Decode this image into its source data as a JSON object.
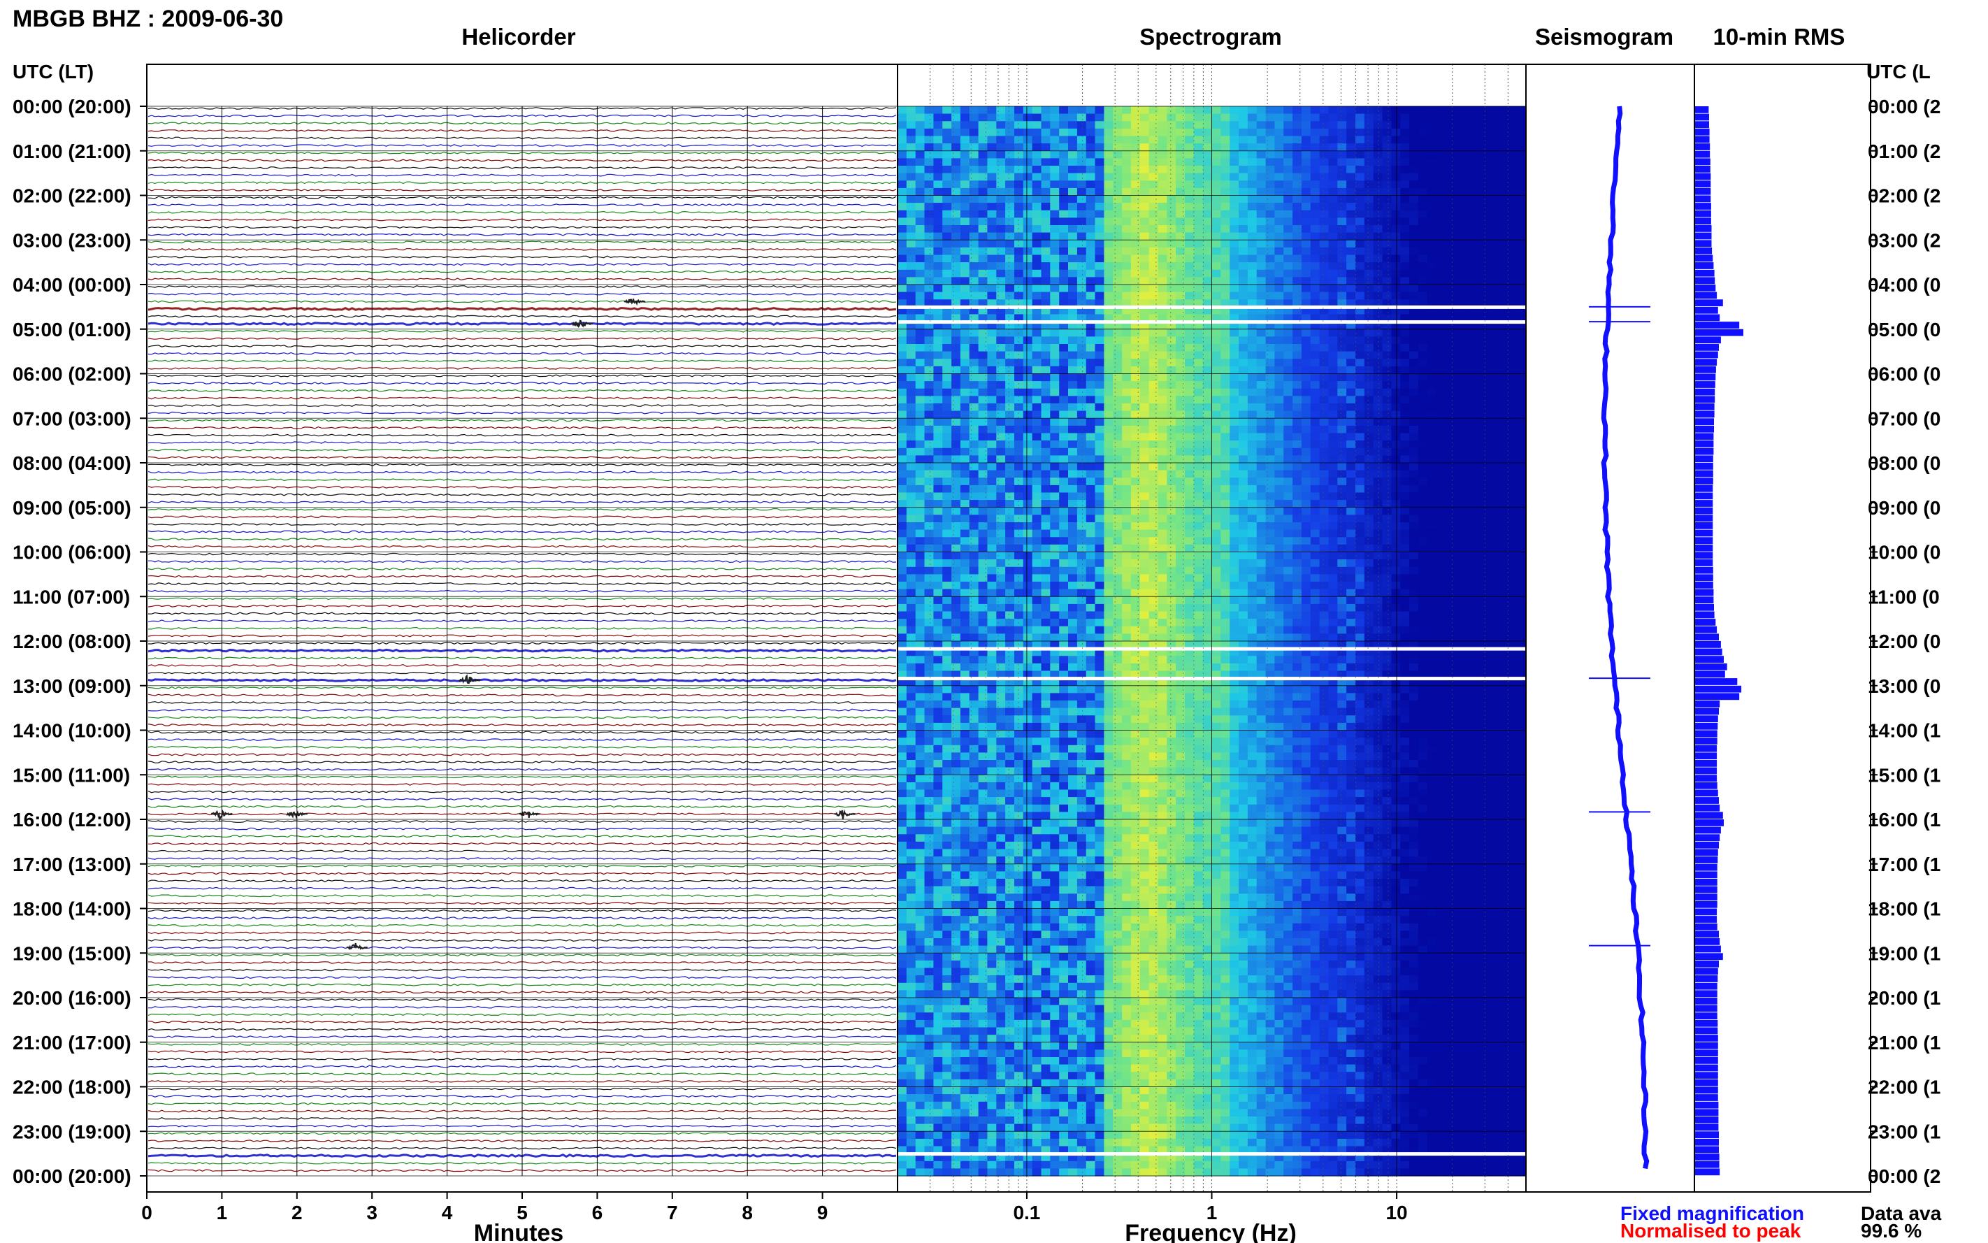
{
  "header": {
    "station": "MBGB BHZ : 2009-06-30",
    "panel_titles": [
      "Helicorder",
      "Spectrogram",
      "Seismogram",
      "10-min RMS"
    ],
    "left_axis_header": "UTC (LT)",
    "right_axis_header": "UTC (L"
  },
  "footer": {
    "legend_fixed": "Fixed magnification",
    "legend_normalised": "Normalised to peak",
    "availability_label": "Data ava",
    "availability_value": "99.6 %"
  },
  "colors": {
    "fixed": "#1010ff",
    "normalised": "#ff0000",
    "trace_cycle": [
      "#101010",
      "#1a1acc",
      "#1a8a1a",
      "#8a0a0a"
    ],
    "rms_bar": "#1010ff"
  },
  "chart_data": [
    {
      "type": "line",
      "panel": "helicorder",
      "title": "Helicorder",
      "xlabel": "Minutes",
      "xlim": [
        0,
        10
      ],
      "x_ticks": [
        "0",
        "1",
        "2",
        "3",
        "4",
        "5",
        "6",
        "7",
        "8",
        "9"
      ],
      "y_tick_labels": [
        "00:00 (20:00)",
        "01:00 (21:00)",
        "02:00 (22:00)",
        "03:00 (23:00)",
        "04:00 (00:00)",
        "05:00 (01:00)",
        "06:00 (02:00)",
        "07:00 (03:00)",
        "08:00 (04:00)",
        "09:00 (05:00)",
        "10:00 (06:00)",
        "11:00 (07:00)",
        "12:00 (08:00)",
        "13:00 (09:00)",
        "14:00 (10:00)",
        "15:00 (11:00)",
        "16:00 (12:00)",
        "17:00 (13:00)",
        "18:00 (14:00)",
        "19:00 (15:00)",
        "20:00 (16:00)",
        "21:00 (17:00)",
        "22:00 (18:00)",
        "23:00 (19:00)",
        "00:00 (20:00)"
      ],
      "right_tick_labels": [
        "00:00 (2",
        "01:00 (2",
        "02:00 (2",
        "03:00 (2",
        "04:00 (0",
        "05:00 (0",
        "06:00 (0",
        "07:00 (0",
        "08:00 (0",
        "09:00 (0",
        "10:00 (0",
        "11:00 (0",
        "12:00 (0",
        "13:00 (0",
        "14:00 (1",
        "15:00 (1",
        "16:00 (1",
        "17:00 (1",
        "18:00 (1",
        "19:00 (1",
        "20:00 (1",
        "21:00 (1",
        "22:00 (1",
        "23:00 (1",
        "00:00 (2"
      ],
      "traces_per_hour": 6,
      "gaps_utc": [
        "04:30",
        "04:50",
        "12:10",
        "12:50",
        "23:30"
      ],
      "events": [
        {
          "time_utc": "04:20",
          "minute": 6.5
        },
        {
          "time_utc": "04:50",
          "minute": 5.8
        },
        {
          "time_utc": "12:50",
          "minute": 4.3
        },
        {
          "time_utc": "15:50",
          "minute": 1.0
        },
        {
          "time_utc": "15:50",
          "minute": 2.0
        },
        {
          "time_utc": "15:50",
          "minute": 5.1
        },
        {
          "time_utc": "15:50",
          "minute": 9.3
        },
        {
          "time_utc": "18:50",
          "minute": 2.8
        }
      ]
    },
    {
      "type": "heatmap",
      "panel": "spectrogram",
      "title": "Spectrogram",
      "xlabel": "Frequency (Hz)",
      "x_scale": "log",
      "xlim": [
        0.02,
        50
      ],
      "x_tick_labels": [
        "0.1",
        "1",
        "10"
      ],
      "peak_band_hz": [
        0.3,
        0.6
      ],
      "ocean_bands_hz": [
        5,
        7
      ],
      "gaps_utc": [
        "04:30",
        "04:50",
        "12:10",
        "12:50",
        "23:30"
      ]
    },
    {
      "type": "line",
      "panel": "seismogram",
      "title": "Seismogram",
      "description_values": "long-period drift of one trace per 10 min",
      "spikes_utc": [
        "04:30",
        "04:50",
        "12:50",
        "15:50",
        "18:50"
      ]
    },
    {
      "type": "bar",
      "panel": "rms",
      "title": "10-min RMS",
      "hours": 24,
      "values_per_hour": [
        [
          0.35,
          0.36,
          0.36,
          0.37,
          0.37,
          0.38
        ],
        [
          0.38,
          0.39,
          0.39,
          0.4,
          0.4,
          0.4
        ],
        [
          0.4,
          0.41,
          0.41,
          0.41,
          0.42,
          0.42
        ],
        [
          0.42,
          0.43,
          0.45,
          0.47,
          0.49,
          0.5
        ],
        [
          0.52,
          0.55,
          0.7,
          0.58,
          0.62,
          1.1
        ],
        [
          1.2,
          0.65,
          0.6,
          0.58,
          0.55,
          0.53
        ],
        [
          0.52,
          0.51,
          0.5,
          0.5,
          0.49,
          0.49
        ],
        [
          0.48,
          0.48,
          0.47,
          0.47,
          0.47,
          0.46
        ],
        [
          0.46,
          0.46,
          0.46,
          0.45,
          0.45,
          0.45
        ],
        [
          0.45,
          0.45,
          0.45,
          0.45,
          0.45,
          0.45
        ],
        [
          0.45,
          0.45,
          0.46,
          0.46,
          0.46,
          0.47
        ],
        [
          0.47,
          0.48,
          0.49,
          0.52,
          0.55,
          0.6
        ],
        [
          0.65,
          0.68,
          0.72,
          0.8,
          0.75,
          1.05
        ],
        [
          1.15,
          1.1,
          0.62,
          0.6,
          0.58,
          0.57
        ],
        [
          0.56,
          0.56,
          0.55,
          0.55,
          0.55,
          0.55
        ],
        [
          0.55,
          0.56,
          0.58,
          0.6,
          0.62,
          0.7
        ],
        [
          0.72,
          0.65,
          0.62,
          0.6,
          0.58,
          0.57
        ],
        [
          0.56,
          0.56,
          0.56,
          0.56,
          0.56,
          0.56
        ],
        [
          0.55,
          0.55,
          0.56,
          0.6,
          0.62,
          0.65
        ],
        [
          0.7,
          0.6,
          0.58,
          0.57,
          0.56,
          0.56
        ],
        [
          0.56,
          0.56,
          0.56,
          0.57,
          0.57,
          0.58
        ],
        [
          0.58,
          0.58,
          0.58,
          0.58,
          0.58,
          0.58
        ],
        [
          0.58,
          0.58,
          0.59,
          0.59,
          0.59,
          0.59
        ],
        [
          0.6,
          0.6,
          0.6,
          0.61,
          0.61,
          0.62
        ]
      ],
      "value_max": 1.2
    }
  ]
}
